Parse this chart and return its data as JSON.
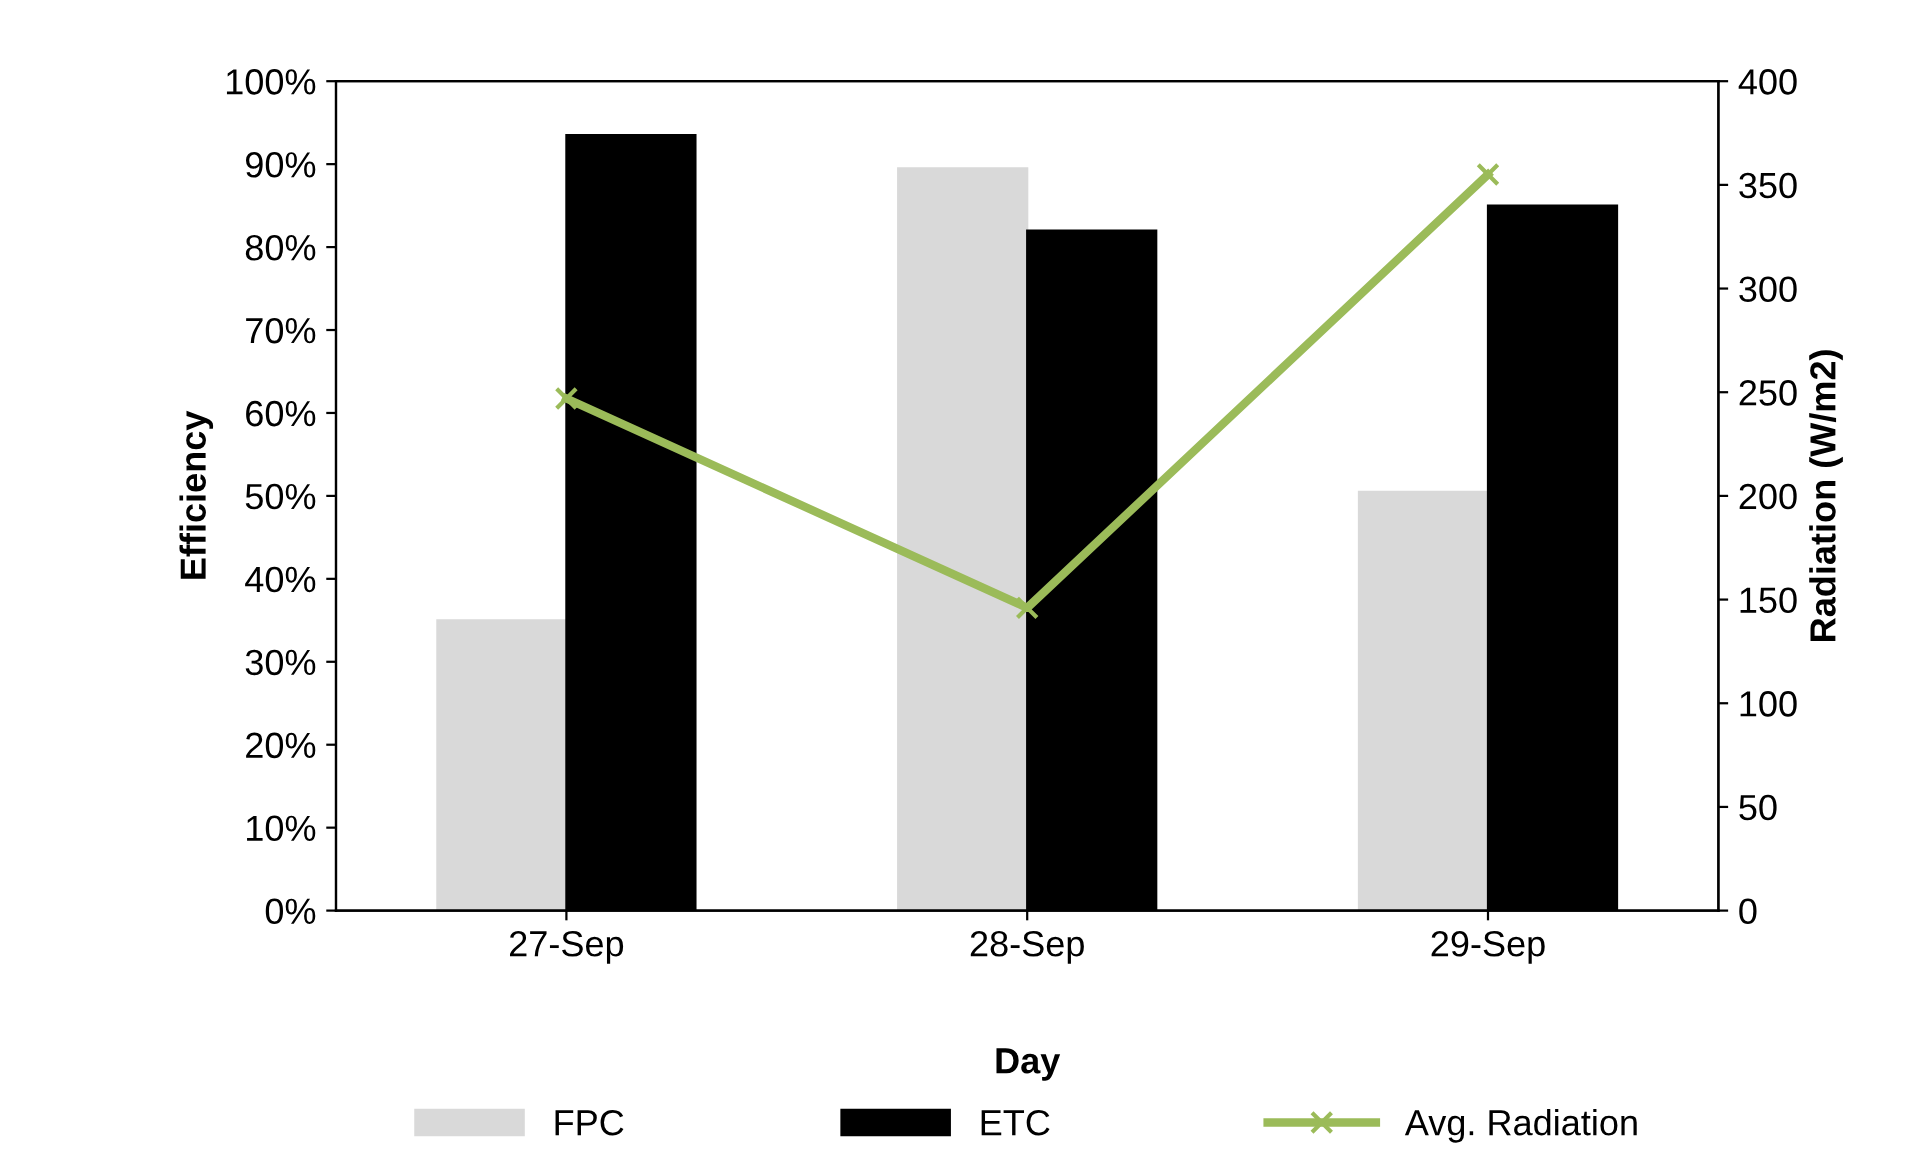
{
  "chart_data": {
    "type": "bar",
    "xlabel": "Day",
    "ylabel": "Efficiency",
    "y2label": "Radiation (W/m2)",
    "categories": [
      "27-Sep",
      "28-Sep",
      "29-Sep"
    ],
    "series": [
      {
        "name": "FPC",
        "color": "#d9d9d9",
        "values": [
          35,
          89.5,
          50.5
        ]
      },
      {
        "name": "ETC",
        "color": "#000000",
        "values": [
          93.5,
          82,
          85
        ]
      },
      {
        "name": "Avg. Radiation",
        "type": "line",
        "axis": "y2",
        "color": "#9bbb59",
        "values": [
          247,
          146,
          355
        ],
        "marker": "cross"
      }
    ],
    "ylim": [
      0,
      100
    ],
    "yticks": [
      {
        "value": 0,
        "label": "0%"
      },
      {
        "value": 10,
        "label": "10%"
      },
      {
        "value": 20,
        "label": "20%"
      },
      {
        "value": 30,
        "label": "30%"
      },
      {
        "value": 40,
        "label": "40%"
      },
      {
        "value": 50,
        "label": "50%"
      },
      {
        "value": 60,
        "label": "60%"
      },
      {
        "value": 70,
        "label": "70%"
      },
      {
        "value": 80,
        "label": "80%"
      },
      {
        "value": 90,
        "label": "90%"
      },
      {
        "value": 100,
        "label": "100%"
      }
    ],
    "y2lim": [
      0,
      400
    ],
    "y2ticks": [
      0,
      50,
      100,
      150,
      200,
      250,
      300,
      350,
      400
    ],
    "legend": "bottom",
    "grid": false
  }
}
